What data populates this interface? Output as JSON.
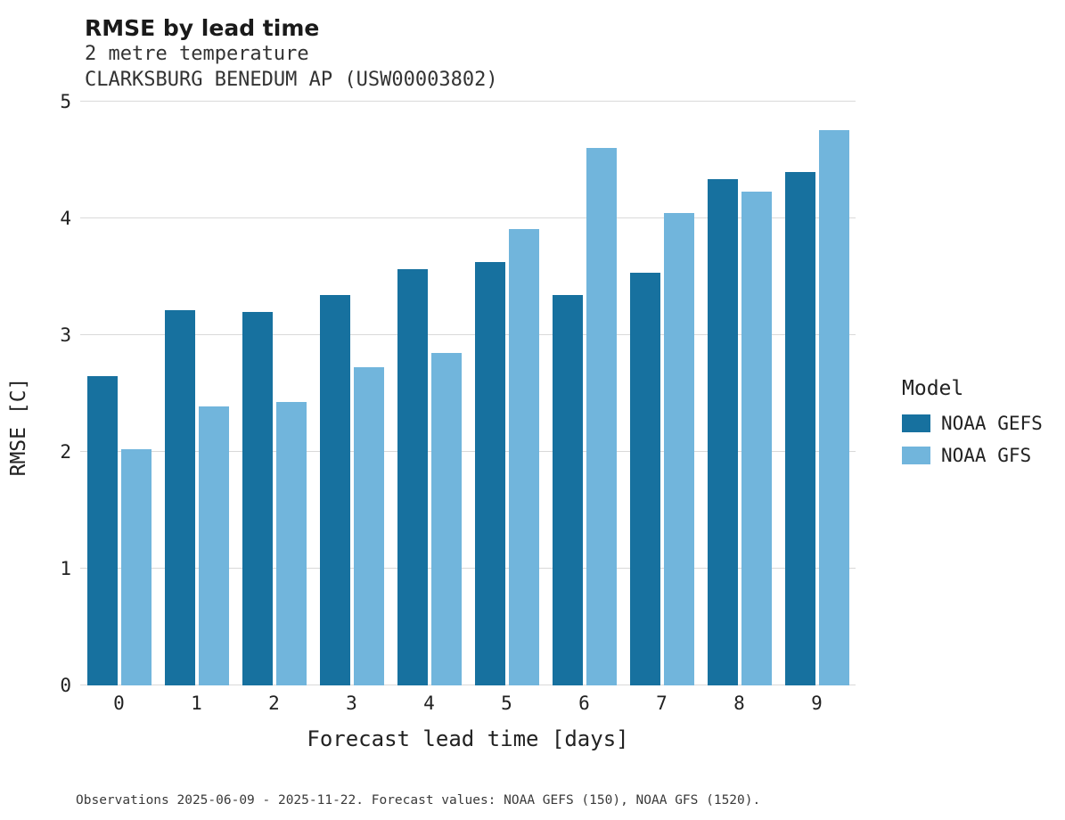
{
  "chart_data": {
    "type": "bar",
    "title": "RMSE by lead time",
    "subtitle": [
      "2 metre temperature",
      "CLARKSBURG BENEDUM AP (USW00003802)"
    ],
    "xlabel": "Forecast lead time [days]",
    "ylabel": "RMSE [C]",
    "ylim": [
      0,
      5
    ],
    "yticks": [
      0,
      1,
      2,
      3,
      4,
      5
    ],
    "grid": true,
    "categories": [
      "0",
      "1",
      "2",
      "3",
      "4",
      "5",
      "6",
      "7",
      "8",
      "9"
    ],
    "series": [
      {
        "name": "NOAA GEFS",
        "color": "#17719f",
        "values": [
          2.65,
          3.22,
          3.2,
          3.35,
          3.57,
          3.63,
          3.35,
          3.54,
          4.34,
          4.4
        ]
      },
      {
        "name": "NOAA GFS",
        "color": "#71b5dc",
        "values": [
          2.03,
          2.39,
          2.43,
          2.73,
          2.85,
          3.91,
          4.61,
          4.05,
          4.23,
          4.76
        ]
      }
    ],
    "legend_title": "Model",
    "legend_position": "right",
    "caption": "Observations 2025-06-09 - 2025-11-22. Forecast values: NOAA GEFS (150), NOAA GFS (1520)."
  }
}
